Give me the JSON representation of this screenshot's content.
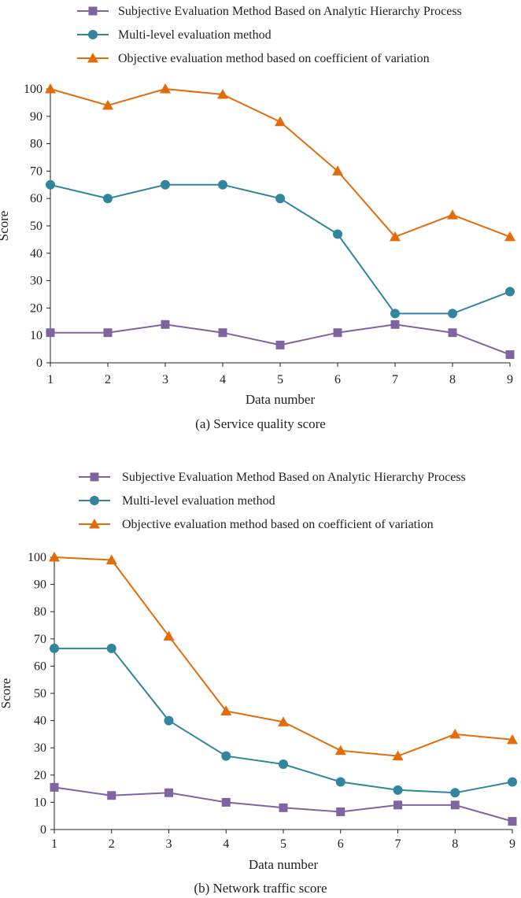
{
  "chart_data": [
    {
      "type": "line",
      "caption": "(a) Service quality score",
      "xlabel": "Data number",
      "ylabel": "Score",
      "categories": [
        "1",
        "2",
        "3",
        "4",
        "5",
        "6",
        "7",
        "8",
        "9"
      ],
      "yticks": [
        "0",
        "10",
        "20",
        "30",
        "40",
        "50",
        "60",
        "70",
        "80",
        "90",
        "100"
      ],
      "ylim": [
        0,
        100
      ],
      "legend_position": "top",
      "series": [
        {
          "name": "Subjective Evaluation Method Based on Analytic Hierarchy Process",
          "marker": "square",
          "color": "#8064a2",
          "values": [
            11,
            11,
            14,
            11,
            6.5,
            11,
            14,
            11,
            3
          ]
        },
        {
          "name": "Multi-level evaluation method",
          "marker": "circle",
          "color": "#31859c",
          "values": [
            65,
            60,
            65,
            65,
            60,
            47,
            18,
            18,
            26
          ]
        },
        {
          "name": "Objective evaluation method based on coefficient of variation",
          "marker": "triangle",
          "color": "#e36c09",
          "values": [
            100,
            94,
            100,
            98,
            88,
            70,
            46,
            54,
            46
          ]
        }
      ]
    },
    {
      "type": "line",
      "caption": "(b) Network traffic score",
      "xlabel": "Data number",
      "ylabel": "Score",
      "categories": [
        "1",
        "2",
        "3",
        "4",
        "5",
        "6",
        "7",
        "8",
        "9"
      ],
      "yticks": [
        "0",
        "10",
        "20",
        "30",
        "40",
        "50",
        "60",
        "70",
        "80",
        "90",
        "100"
      ],
      "ylim": [
        0,
        100
      ],
      "legend_position": "top",
      "series": [
        {
          "name": "Subjective Evaluation Method Based on Analytic Hierarchy Process",
          "marker": "square",
          "color": "#8064a2",
          "values": [
            15.5,
            12.5,
            13.5,
            10,
            8,
            6.5,
            9,
            9,
            3
          ]
        },
        {
          "name": "Multi-level evaluation method",
          "marker": "circle",
          "color": "#31859c",
          "values": [
            66.5,
            66.5,
            40,
            27,
            24,
            17.5,
            14.5,
            13.5,
            17.5
          ]
        },
        {
          "name": "Objective evaluation method based on coefficient of variation",
          "marker": "triangle",
          "color": "#e36c09",
          "values": [
            100,
            99,
            71,
            43.5,
            39.5,
            29,
            27,
            35,
            33
          ]
        }
      ]
    }
  ]
}
